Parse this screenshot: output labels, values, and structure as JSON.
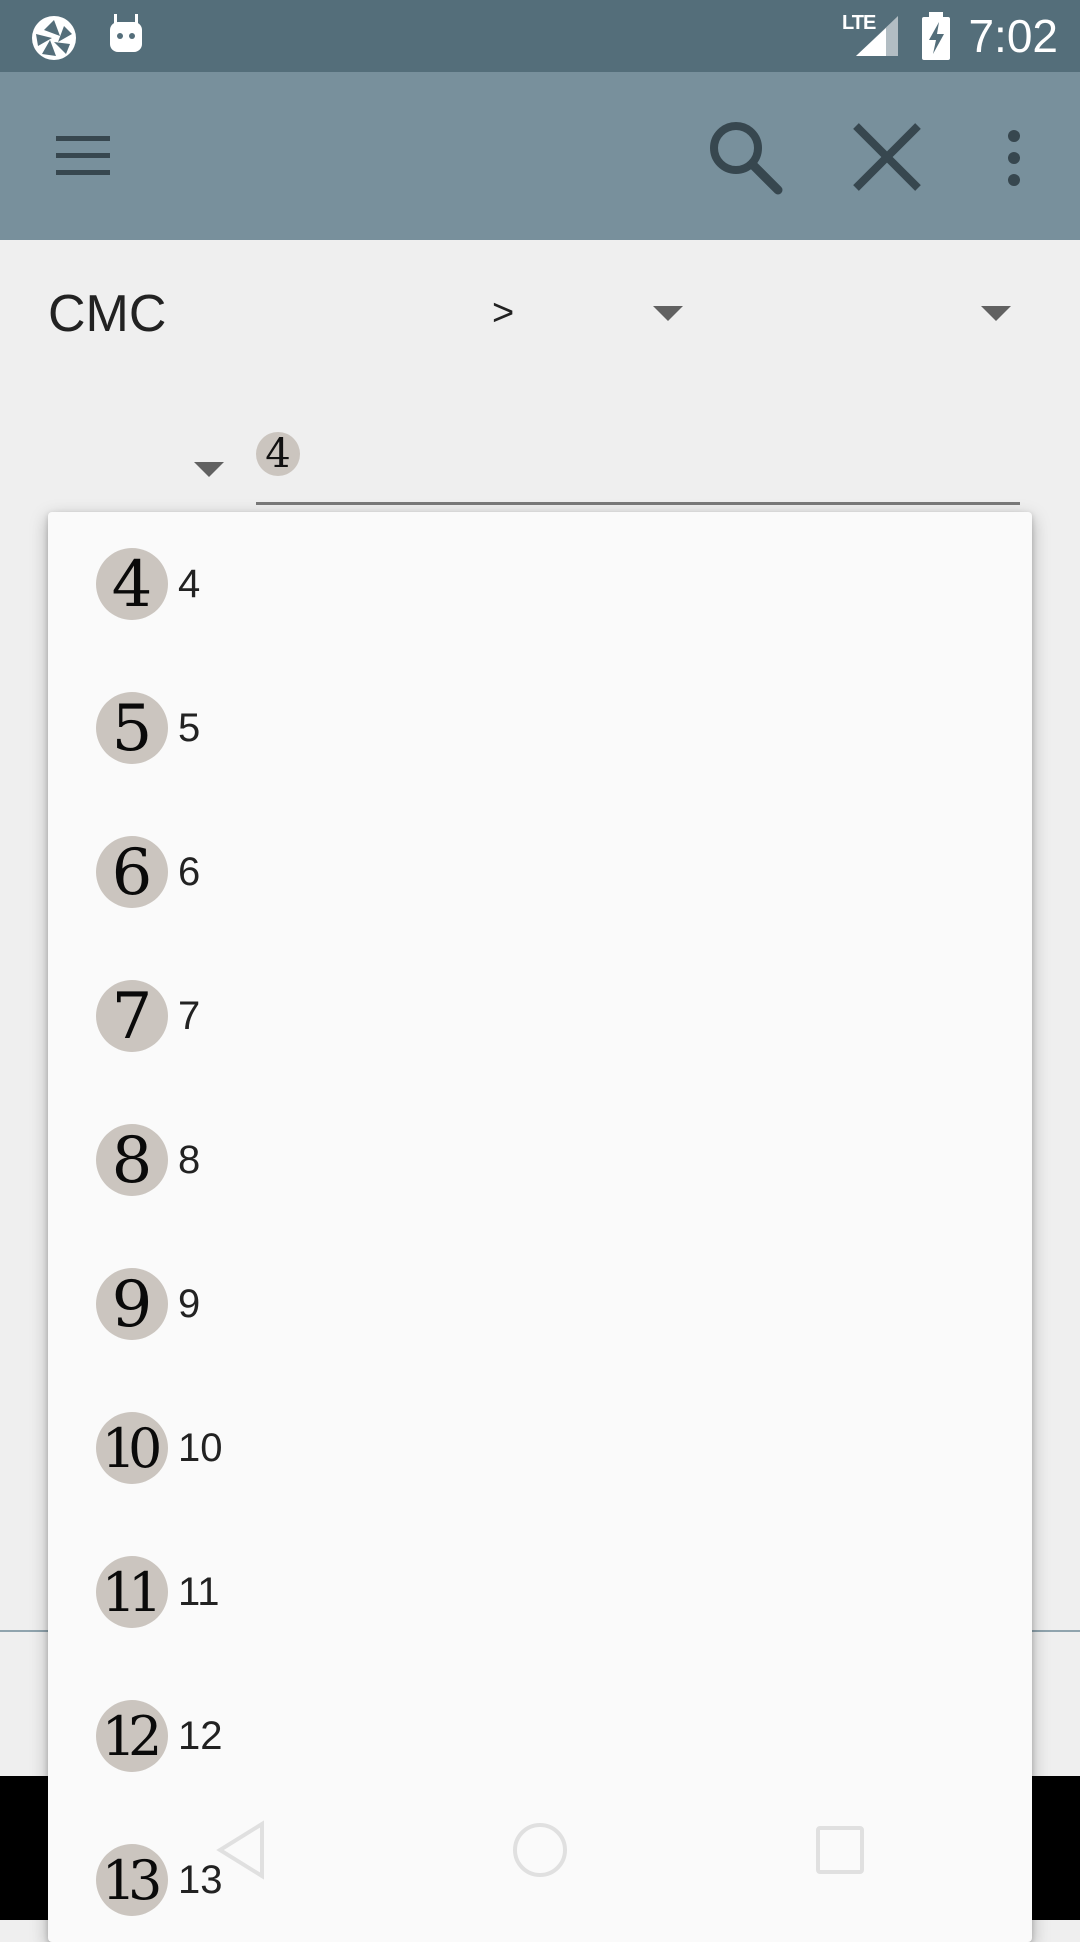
{
  "status_bar": {
    "time": "7:02",
    "network": "LTE",
    "icons": [
      "aperture-icon",
      "android-icon",
      "signal-icon",
      "battery-charging-icon"
    ]
  },
  "app_bar": {
    "icons": [
      "menu-icon",
      "search-icon",
      "close-icon",
      "more-vert-icon"
    ],
    "color": "#78909c"
  },
  "filter": {
    "field_label": "CMC",
    "operator": ">",
    "value_symbol": "4"
  },
  "dropdown": {
    "items": [
      {
        "symbol": "4",
        "label": "4"
      },
      {
        "symbol": "5",
        "label": "5"
      },
      {
        "symbol": "6",
        "label": "6"
      },
      {
        "symbol": "7",
        "label": "7"
      },
      {
        "symbol": "8",
        "label": "8"
      },
      {
        "symbol": "9",
        "label": "9"
      },
      {
        "symbol": "10",
        "label": "10"
      },
      {
        "symbol": "11",
        "label": "11"
      },
      {
        "symbol": "12",
        "label": "12"
      },
      {
        "symbol": "13",
        "label": "13"
      }
    ]
  },
  "nav_bar": {
    "icons": [
      "back-icon",
      "home-icon",
      "recents-icon"
    ]
  },
  "colors": {
    "status_bar": "#546e7a",
    "app_bar": "#78909c",
    "background": "#efefef",
    "mana_circle": "#cbc5bf"
  }
}
